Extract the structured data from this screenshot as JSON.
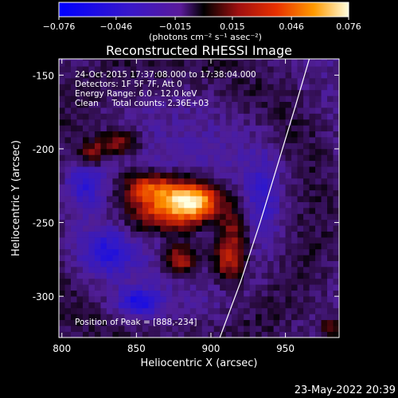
{
  "chart_data": {
    "type": "heatmap",
    "title": "Reconstructed RHESSI Image",
    "xlabel": "Heliocentric X (arcsec)",
    "ylabel": "Heliocentric Y (arcsec)",
    "xlim": [
      798,
      986
    ],
    "ylim": [
      -328,
      -139
    ],
    "x_ticks": [
      800,
      850,
      900,
      950
    ],
    "y_ticks": [
      -150,
      -200,
      -250,
      -300
    ],
    "colorbar": {
      "range": [
        -0.076,
        0.076
      ],
      "ticks": [
        "-0.076",
        "-0.046",
        "-0.015",
        "0.015",
        "0.046",
        "0.076"
      ],
      "unit_label": "(photons cm⁻² s⁻¹ asec⁻²)"
    },
    "annotations": [
      "24-Oct-2015 17:37:08.000 to 17:38:04.000",
      "Detectors: 1F 5F 7F, Att 0",
      "Energy Range: 6.0 - 12.0 keV",
      "Clean     Total counts: 2.36E+03"
    ],
    "peak_label": "Position of Peak = [888,-234]",
    "peak": [
      888,
      -234
    ],
    "sources": [
      {
        "x": 888,
        "y": -234,
        "value": 0.076,
        "sx": 14,
        "sy": 9
      },
      {
        "x": 858,
        "y": -226,
        "value": 0.052,
        "sx": 13,
        "sy": 8
      },
      {
        "x": 870,
        "y": -244,
        "value": 0.05,
        "sx": 20,
        "sy": 10
      },
      {
        "x": 880,
        "y": -275,
        "value": 0.046,
        "sx": 9,
        "sy": 8
      },
      {
        "x": 912,
        "y": -276,
        "value": 0.042,
        "sx": 8,
        "sy": 10
      },
      {
        "x": 838,
        "y": -196,
        "value": 0.038,
        "sx": 10,
        "sy": 6
      },
      {
        "x": 820,
        "y": -203,
        "value": 0.03,
        "sx": 6,
        "sy": 6
      },
      {
        "x": 915,
        "y": -255,
        "value": 0.03,
        "sx": 7,
        "sy": 12
      },
      {
        "x": 980,
        "y": -322,
        "value": 0.03,
        "sx": 5,
        "sy": 5
      },
      {
        "x": 852,
        "y": -304,
        "value": -0.04,
        "sx": 10,
        "sy": 6
      },
      {
        "x": 830,
        "y": -270,
        "value": -0.03,
        "sx": 12,
        "sy": 10
      },
      {
        "x": 815,
        "y": -225,
        "value": -0.025,
        "sx": 8,
        "sy": 10
      },
      {
        "x": 935,
        "y": -230,
        "value": -0.02,
        "sx": 8,
        "sy": 20
      }
    ],
    "limb_curve": [
      [
        906,
        -328
      ],
      [
        920,
        -290
      ],
      [
        933,
        -250
      ],
      [
        945,
        -210
      ],
      [
        957,
        -170
      ],
      [
        966,
        -139
      ]
    ]
  },
  "footer": {
    "date": "23-May-2022 20:39"
  }
}
